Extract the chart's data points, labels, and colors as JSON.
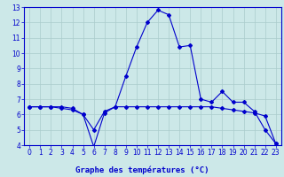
{
  "xlabel": "Graphe des températures (°C)",
  "hours": [
    0,
    1,
    2,
    3,
    4,
    5,
    6,
    7,
    8,
    9,
    10,
    11,
    12,
    13,
    14,
    15,
    16,
    17,
    18,
    19,
    20,
    21,
    22,
    23
  ],
  "line1": [
    6.5,
    6.5,
    6.5,
    6.5,
    6.4,
    6.0,
    5.0,
    6.2,
    6.5,
    8.5,
    10.4,
    12.0,
    12.8,
    12.5,
    10.4,
    10.5,
    7.0,
    6.8,
    7.5,
    6.8,
    6.8,
    6.2,
    5.0,
    4.1
  ],
  "line2": [
    6.5,
    6.5,
    6.5,
    6.4,
    6.3,
    6.0,
    3.9,
    6.1,
    6.5,
    6.5,
    6.5,
    6.5,
    6.5,
    6.5,
    6.5,
    6.5,
    6.5,
    6.5,
    6.4,
    6.3,
    6.2,
    6.1,
    5.9,
    4.1
  ],
  "line_color": "#0000cc",
  "bg_color": "#cce8e8",
  "grid_color": "#aacccc",
  "ylim": [
    4,
    13
  ],
  "yticks": [
    4,
    5,
    6,
    7,
    8,
    9,
    10,
    11,
    12,
    13
  ],
  "xticks": [
    0,
    1,
    2,
    3,
    4,
    5,
    6,
    7,
    8,
    9,
    10,
    11,
    12,
    13,
    14,
    15,
    16,
    17,
    18,
    19,
    20,
    21,
    22,
    23
  ],
  "tick_fontsize": 5.5,
  "label_fontsize": 6.5,
  "marker": "D",
  "markersize": 2.0
}
